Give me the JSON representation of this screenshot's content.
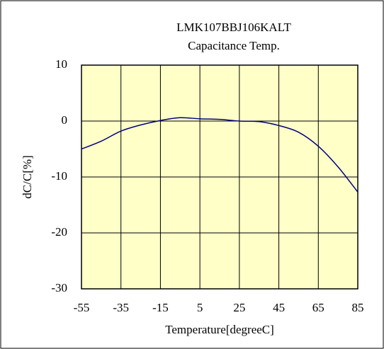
{
  "chart_data": {
    "type": "line",
    "title": "LMK107BBJ106KALT",
    "subtitle": "Capacitance Temp.",
    "x_label": "Temperature[degreeC]",
    "y_label": "dC/C[%]",
    "x": [
      -55,
      -45,
      -35,
      -25,
      -15,
      -5,
      5,
      15,
      25,
      35,
      45,
      55,
      65,
      75,
      85
    ],
    "values": [
      -5,
      -3.6,
      -1.8,
      -0.7,
      0.1,
      0.6,
      0.4,
      0.3,
      0,
      -0.1,
      -0.8,
      -2,
      -4.5,
      -8.2,
      -12.7
    ],
    "color": "#000080",
    "background": "#ffffc8",
    "xlim": [
      -55,
      85
    ],
    "xticks": [
      -55,
      -35,
      -15,
      5,
      25,
      45,
      65,
      85
    ],
    "ylim": [
      -30,
      10
    ],
    "yticks": [
      -30,
      -20,
      -10,
      0,
      10
    ],
    "grid": true
  }
}
